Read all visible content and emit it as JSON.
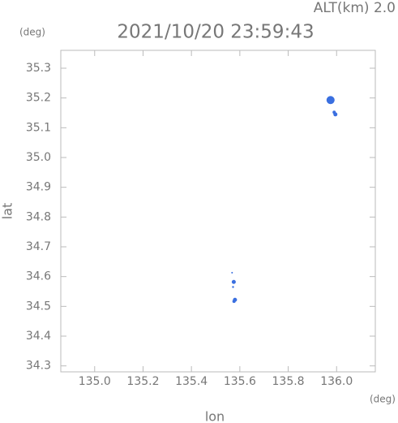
{
  "chart_data": {
    "type": "scatter",
    "title": "2021/10/20 23:59:43",
    "altitude_label": "ALT(km) 2.0",
    "y_unit": "(deg)",
    "x_unit": "(deg)",
    "xlabel": "lon",
    "ylabel": "lat",
    "color": "#3a6fe0",
    "x": [
      135.975,
      135.99,
      135.995,
      135.575,
      135.572,
      135.568,
      135.58,
      135.576
    ],
    "y": [
      35.193,
      35.152,
      35.145,
      34.582,
      34.565,
      34.613,
      34.522,
      34.517
    ],
    "sizes": [
      5,
      2,
      2.5,
      2.5,
      1.2,
      1,
      2.5,
      2
    ],
    "xlim": [
      134.86,
      136.16
    ],
    "ylim": [
      34.28,
      35.36
    ],
    "xticks": [
      {
        "value": 135,
        "label": "135.0"
      },
      135.2,
      135.4,
      135.6,
      135.8,
      {
        "value": 136,
        "label": "136.0"
      }
    ],
    "yticks": [
      34.3,
      34.4,
      34.5,
      34.6,
      34.7,
      34.8,
      34.9,
      {
        "value": 35,
        "label": "35.0"
      },
      35.1,
      35.2,
      35.3
    ]
  }
}
